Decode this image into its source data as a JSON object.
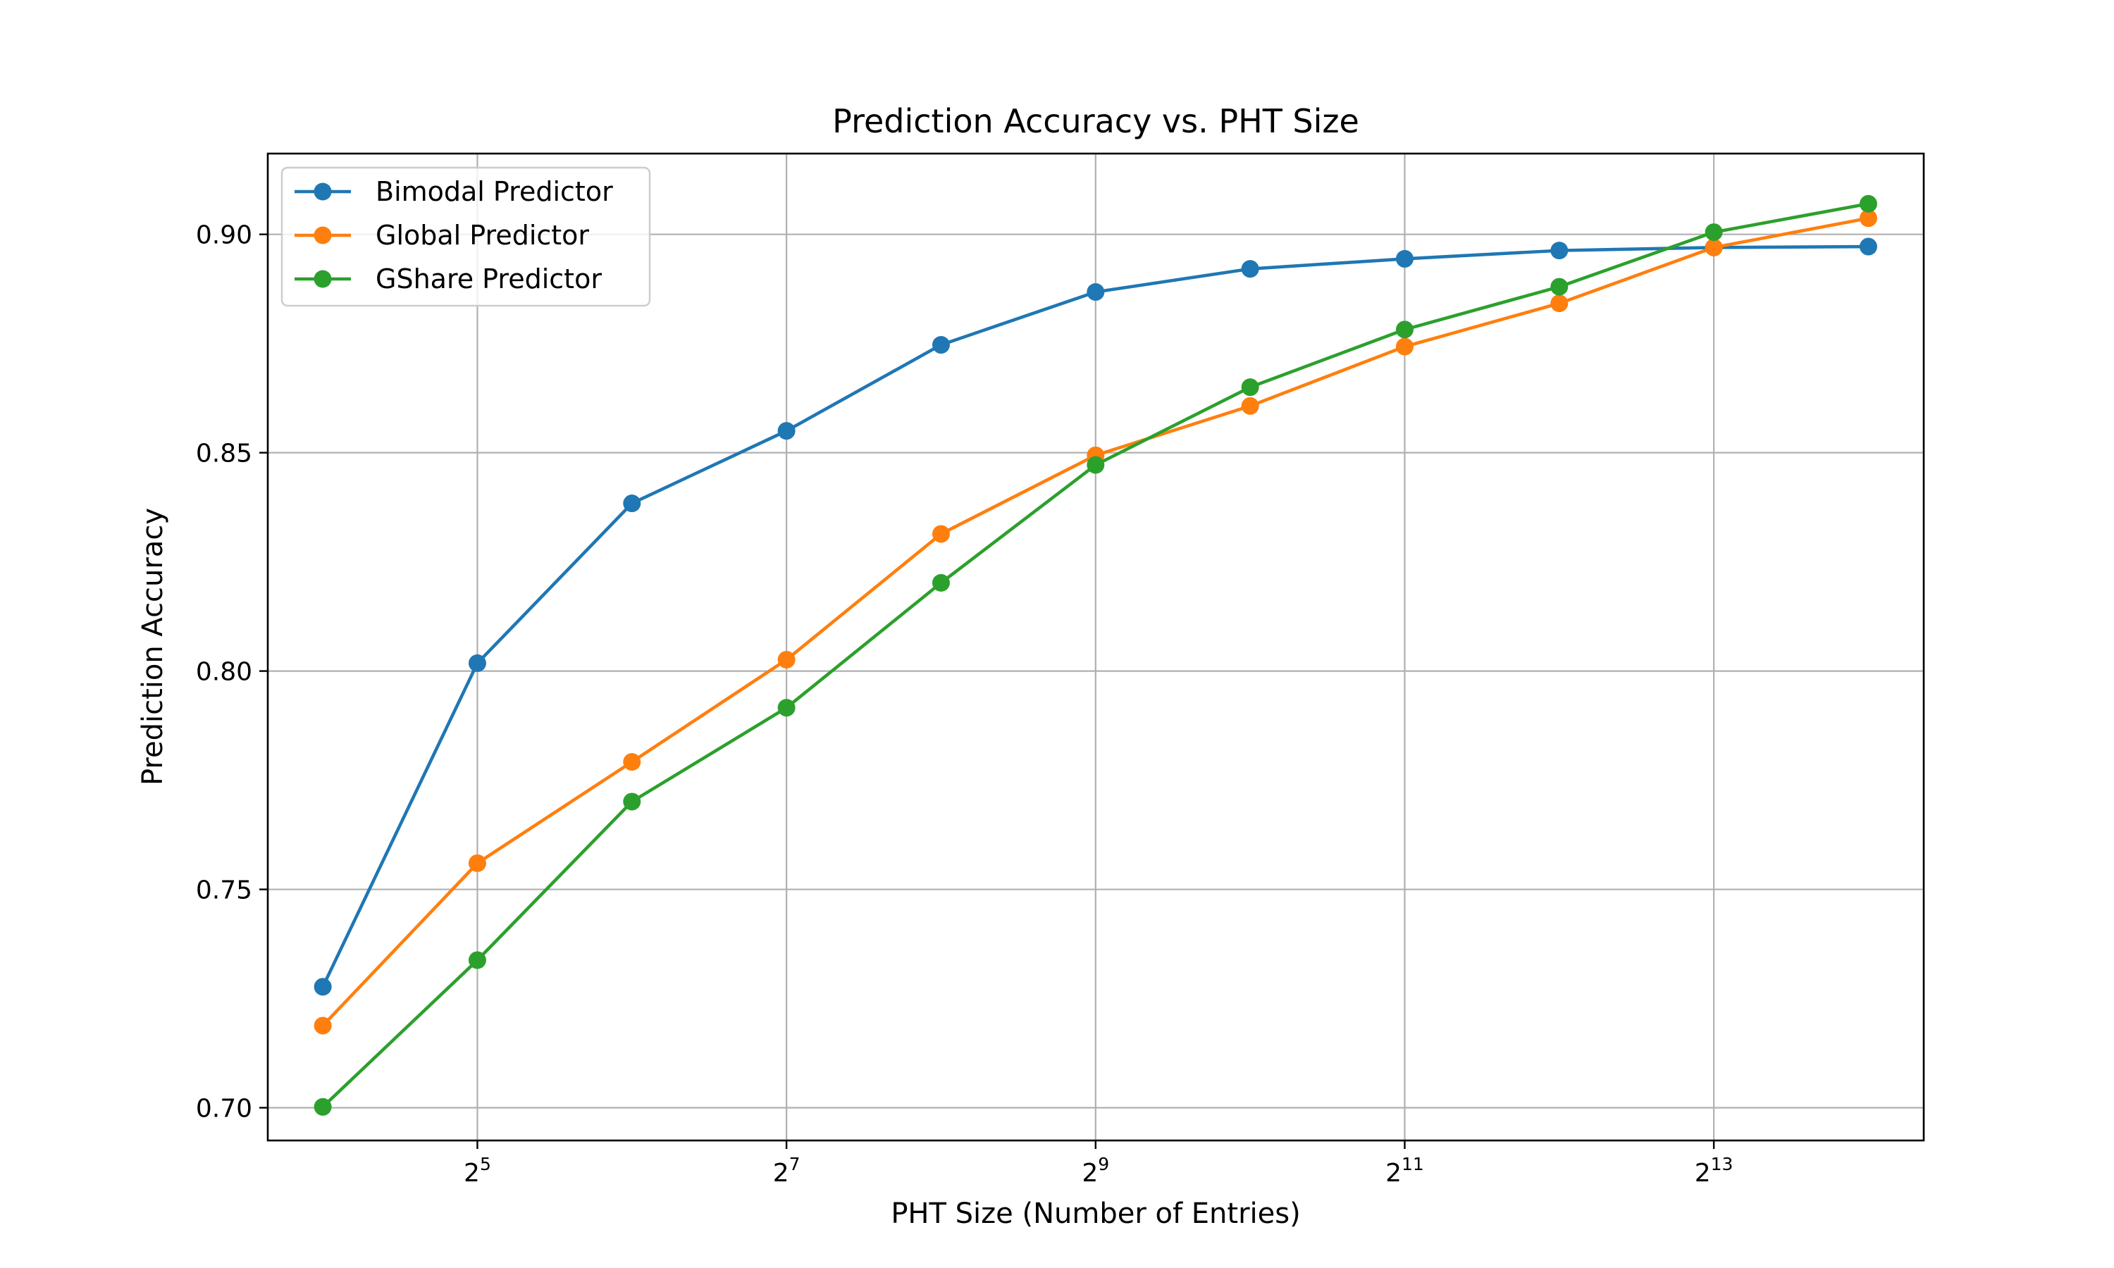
{
  "chart_data": {
    "type": "line",
    "title": "Prediction Accuracy vs. PHT Size",
    "xlabel": "PHT Size (Number of Entries)",
    "ylabel": "Prediction Accuracy",
    "x_scale": "log2",
    "x": [
      16,
      32,
      64,
      128,
      256,
      512,
      1024,
      2048,
      4096,
      8192,
      16384
    ],
    "xlim": [
      12.5,
      21000
    ],
    "ylim": [
      0.6925,
      0.9185
    ],
    "x_ticks": [
      {
        "value": 32,
        "base": "2",
        "exp": "5"
      },
      {
        "value": 128,
        "base": "2",
        "exp": "7"
      },
      {
        "value": 512,
        "base": "2",
        "exp": "9"
      },
      {
        "value": 2048,
        "base": "2",
        "exp": "11"
      },
      {
        "value": 8192,
        "base": "2",
        "exp": "13"
      }
    ],
    "y_ticks": [
      {
        "value": 0.7,
        "label": "0.70"
      },
      {
        "value": 0.75,
        "label": "0.75"
      },
      {
        "value": 0.8,
        "label": "0.80"
      },
      {
        "value": 0.85,
        "label": "0.85"
      },
      {
        "value": 0.9,
        "label": "0.90"
      }
    ],
    "grid": true,
    "legend_position": "top-left",
    "series": [
      {
        "name": "Bimodal Predictor",
        "color": "#1f77b4",
        "values": [
          0.7277,
          0.8018,
          0.8384,
          0.855,
          0.8747,
          0.8868,
          0.8921,
          0.8944,
          0.8963,
          0.897,
          0.8972
        ]
      },
      {
        "name": "Global Predictor",
        "color": "#ff7f0e",
        "values": [
          0.7188,
          0.756,
          0.7792,
          0.8026,
          0.8314,
          0.8494,
          0.8607,
          0.8743,
          0.8842,
          0.897,
          0.9037
        ]
      },
      {
        "name": "GShare Predictor",
        "color": "#2ca02c",
        "values": [
          0.7002,
          0.7338,
          0.7701,
          0.7916,
          0.8202,
          0.8472,
          0.865,
          0.8782,
          0.888,
          0.9005,
          0.907
        ]
      }
    ]
  }
}
